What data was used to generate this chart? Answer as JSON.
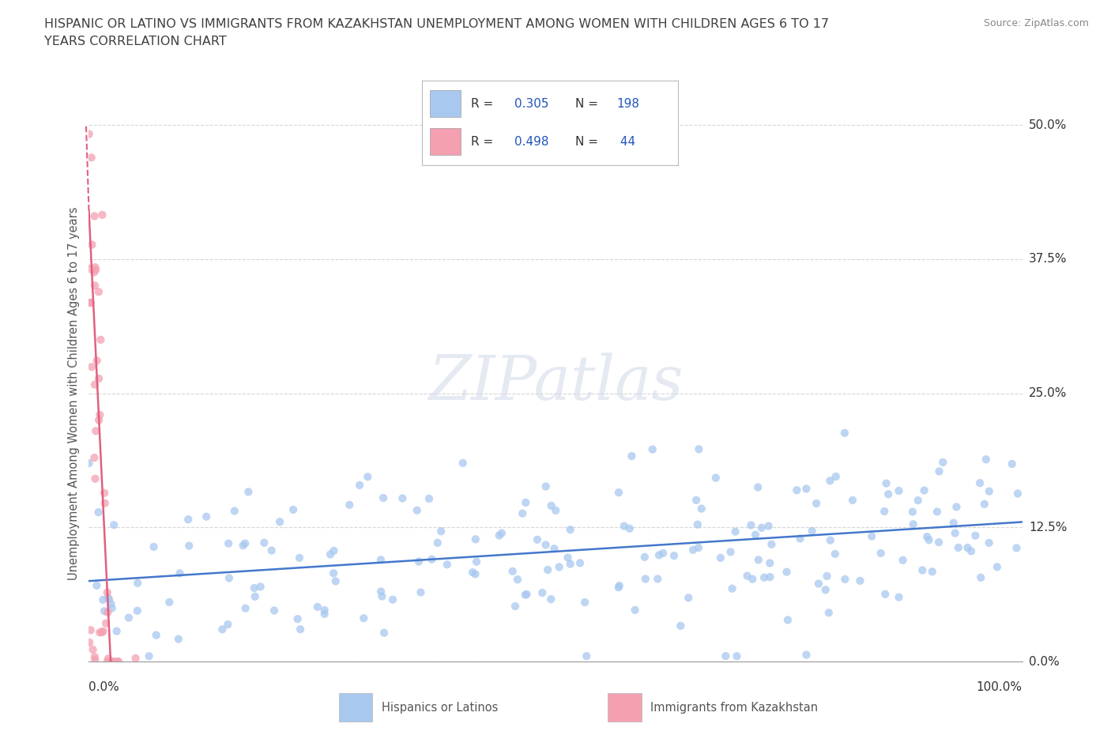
{
  "title_line1": "HISPANIC OR LATINO VS IMMIGRANTS FROM KAZAKHSTAN UNEMPLOYMENT AMONG WOMEN WITH CHILDREN AGES 6 TO 17",
  "title_line2": "YEARS CORRELATION CHART",
  "source": "Source: ZipAtlas.com",
  "ylabel": "Unemployment Among Women with Children Ages 6 to 17 years",
  "xlim": [
    0,
    100
  ],
  "ylim": [
    -2,
    52
  ],
  "plot_ylim": [
    0,
    50
  ],
  "yticks": [
    0,
    12.5,
    25.0,
    37.5,
    50.0
  ],
  "ytick_labels": [
    "0.0%",
    "12.5%",
    "25.0%",
    "37.5%",
    "50.0%"
  ],
  "hispanic_R": 0.305,
  "hispanic_N": 198,
  "kazakh_R": 0.498,
  "kazakh_N": 44,
  "hispanic_color": "#a8c8f0",
  "kazakh_color": "#f4a0b0",
  "hispanic_line_color": "#4477cc",
  "kazakh_line_color": "#e06080",
  "grid_color": "#cccccc",
  "background_color": "#ffffff",
  "title_color": "#404040",
  "legend_r_color": "#2255bb",
  "watermark": "ZIPatlas",
  "hispanic_slope": 0.055,
  "hispanic_intercept": 7.5,
  "kazakh_slope": -18.0,
  "kazakh_intercept": 42.0
}
